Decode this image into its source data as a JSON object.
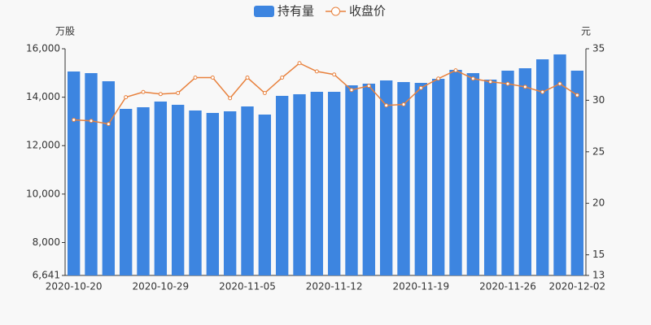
{
  "chart_data": {
    "type": "bar",
    "y_label": "万股",
    "y2_label": "元",
    "categories": [
      "2020-10-20",
      null,
      null,
      null,
      null,
      "2020-10-29",
      null,
      null,
      null,
      null,
      "2020-11-05",
      null,
      null,
      null,
      null,
      "2020-11-12",
      null,
      null,
      null,
      null,
      "2020-11-19",
      null,
      null,
      null,
      null,
      "2020-11-26",
      null,
      null,
      null,
      "2020-12-02"
    ],
    "series": [
      {
        "name": "持有量",
        "type": "bar",
        "color": "#3d85e0",
        "values": [
          15061,
          14994,
          14658,
          13518,
          13585,
          13820,
          13686,
          13451,
          13350,
          13417,
          13618,
          13283,
          14055,
          14122,
          14222,
          14222,
          14490,
          14558,
          14692,
          14625,
          14591,
          14759,
          15128,
          14994,
          14725,
          15095,
          15195,
          15564,
          15766,
          15095
        ]
      },
      {
        "name": "收盘价",
        "type": "line",
        "axis": "y2",
        "color": "#e8813d",
        "values": [
          28.1,
          28.0,
          27.7,
          30.3,
          30.8,
          30.6,
          30.7,
          32.2,
          32.2,
          30.2,
          32.2,
          30.7,
          32.2,
          33.6,
          32.8,
          32.5,
          31.0,
          31.4,
          29.5,
          29.6,
          31.2,
          32.1,
          32.9,
          32.1,
          31.8,
          31.6,
          31.3,
          30.8,
          31.6,
          30.5
        ]
      }
    ],
    "ylim": [
      6641,
      16000
    ],
    "yticks": [
      {
        "value": 6641,
        "label": "6,641"
      },
      {
        "value": 8000,
        "label": "8,000"
      },
      {
        "value": 10000,
        "label": "10,000"
      },
      {
        "value": 12000,
        "label": "12,000"
      },
      {
        "value": 14000,
        "label": "14,000"
      },
      {
        "value": 16000,
        "label": "16,000"
      }
    ],
    "y2lim": [
      13,
      35
    ],
    "y2ticks": [
      13,
      15,
      20,
      25,
      30,
      35
    ]
  }
}
